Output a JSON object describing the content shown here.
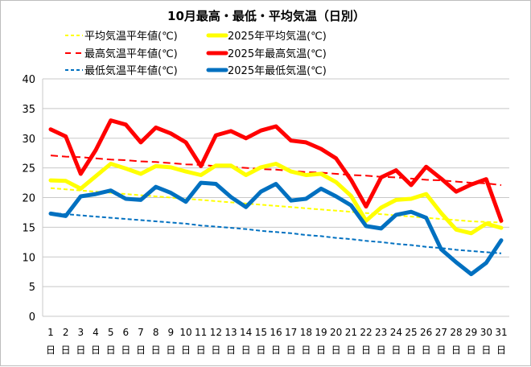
{
  "chart_data": {
    "type": "line",
    "title": "10月最高・最低・平均気温（日別）",
    "xlabel": "",
    "ylabel": "",
    "ylim": [
      0,
      40
    ],
    "yticks": [
      0,
      5,
      10,
      15,
      20,
      25,
      30,
      35,
      40
    ],
    "grid": true,
    "legend_placement": "top",
    "x": [
      1,
      2,
      3,
      4,
      5,
      6,
      7,
      8,
      9,
      10,
      11,
      12,
      13,
      14,
      15,
      16,
      17,
      18,
      19,
      20,
      21,
      22,
      23,
      24,
      25,
      26,
      27,
      28,
      29,
      30,
      31
    ],
    "x_tick_suffix": "日",
    "series": [
      {
        "name": "平均気温平年値(℃)",
        "color": "#ffff00",
        "style": "dashed",
        "values": [
          21.6,
          21.4,
          21.2,
          21.0,
          20.8,
          20.6,
          20.4,
          20.2,
          20.0,
          19.8,
          19.6,
          19.4,
          19.2,
          19.0,
          18.8,
          18.6,
          18.4,
          18.2,
          18.0,
          17.8,
          17.6,
          17.4,
          17.2,
          17.0,
          16.8,
          16.6,
          16.4,
          16.2,
          16.0,
          15.9,
          15.8
        ]
      },
      {
        "name": "2025年平均気温(℃)",
        "color": "#ffff00",
        "style": "solid",
        "values": [
          22.9,
          22.8,
          21.5,
          23.6,
          25.7,
          24.9,
          24.0,
          25.3,
          25.1,
          24.4,
          23.8,
          25.4,
          25.4,
          23.8,
          25.1,
          25.7,
          24.4,
          23.8,
          24.0,
          22.6,
          20.3,
          16.1,
          18.3,
          19.6,
          19.8,
          20.6,
          17.4,
          14.6,
          14.0,
          15.6,
          14.9
        ]
      },
      {
        "name": "最高気温平年値(℃)",
        "color": "#ff0000",
        "style": "dashed",
        "values": [
          27.1,
          26.9,
          26.8,
          26.6,
          26.4,
          26.3,
          26.1,
          26.0,
          25.8,
          25.6,
          25.5,
          25.3,
          25.2,
          25.0,
          24.8,
          24.7,
          24.5,
          24.3,
          24.2,
          24.0,
          23.8,
          23.7,
          23.5,
          23.4,
          23.2,
          23.0,
          22.9,
          22.7,
          22.5,
          22.4,
          22.1
        ]
      },
      {
        "name": "2025年最高気温(℃)",
        "color": "#ff0000",
        "style": "solid",
        "values": [
          31.5,
          30.3,
          24.0,
          28.0,
          33.0,
          32.3,
          29.3,
          31.8,
          30.8,
          29.3,
          25.3,
          30.5,
          31.2,
          30.0,
          31.3,
          32.0,
          29.6,
          29.3,
          28.2,
          26.6,
          23.0,
          18.5,
          23.4,
          24.6,
          22.1,
          25.2,
          23.2,
          21.0,
          22.2,
          23.1,
          16.1
        ]
      },
      {
        "name": "最低気温平年値(℃)",
        "color": "#0070c0",
        "style": "dashed",
        "values": [
          17.4,
          17.2,
          17.0,
          16.8,
          16.6,
          16.4,
          16.2,
          16.0,
          15.8,
          15.6,
          15.3,
          15.1,
          14.9,
          14.7,
          14.4,
          14.2,
          14.0,
          13.7,
          13.5,
          13.2,
          13.0,
          12.7,
          12.5,
          12.2,
          12.0,
          11.7,
          11.5,
          11.2,
          11.0,
          10.8,
          10.6
        ]
      },
      {
        "name": "2025年最低気温(℃)",
        "color": "#0070c0",
        "style": "solid",
        "values": [
          17.3,
          16.9,
          20.2,
          20.6,
          21.2,
          19.8,
          19.6,
          21.8,
          20.8,
          19.3,
          22.5,
          22.3,
          20.1,
          18.4,
          21.0,
          22.3,
          19.5,
          19.8,
          21.5,
          20.2,
          18.7,
          15.2,
          14.8,
          17.1,
          17.6,
          16.6,
          11.3,
          9.1,
          7.1,
          9.0,
          12.8
        ]
      }
    ]
  }
}
